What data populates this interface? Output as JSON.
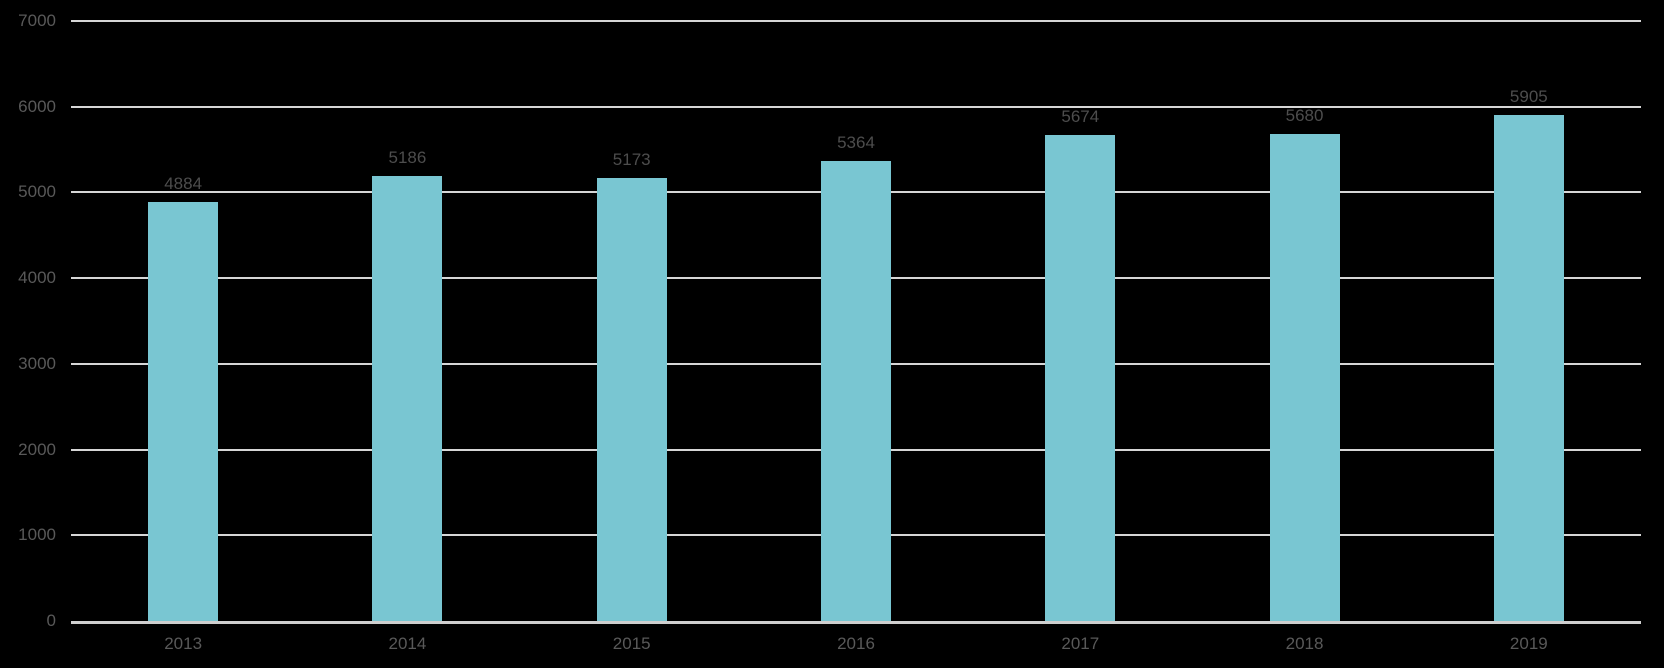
{
  "chart_data": {
    "type": "bar",
    "title": "",
    "xlabel": "",
    "ylabel": "",
    "categories": [
      "2013",
      "2014",
      "2015",
      "2016",
      "2017",
      "2018",
      "2019"
    ],
    "values": [
      4884,
      5186,
      5173,
      5364,
      5674,
      5680,
      5905
    ],
    "data_labels": [
      "4884",
      "5186",
      "5173",
      "5364",
      "5674",
      "5680",
      "5905"
    ],
    "ylim": [
      0,
      7000
    ],
    "yticks": [
      0,
      1000,
      2000,
      3000,
      4000,
      5000,
      6000,
      7000
    ],
    "ytick_labels": [
      "0",
      "1000",
      "2000",
      "3000",
      "4000",
      "5000",
      "6000",
      "7000"
    ],
    "grid": true,
    "legend": false,
    "colors": {
      "background": "#000000",
      "bar_fill": "#79c6d2",
      "gridline": "#d6d6d6",
      "axis_line": "#cfcfcf",
      "y_tick_label": "#595959",
      "x_tick_label": "#595959",
      "data_label": "#4d4d4d"
    }
  }
}
